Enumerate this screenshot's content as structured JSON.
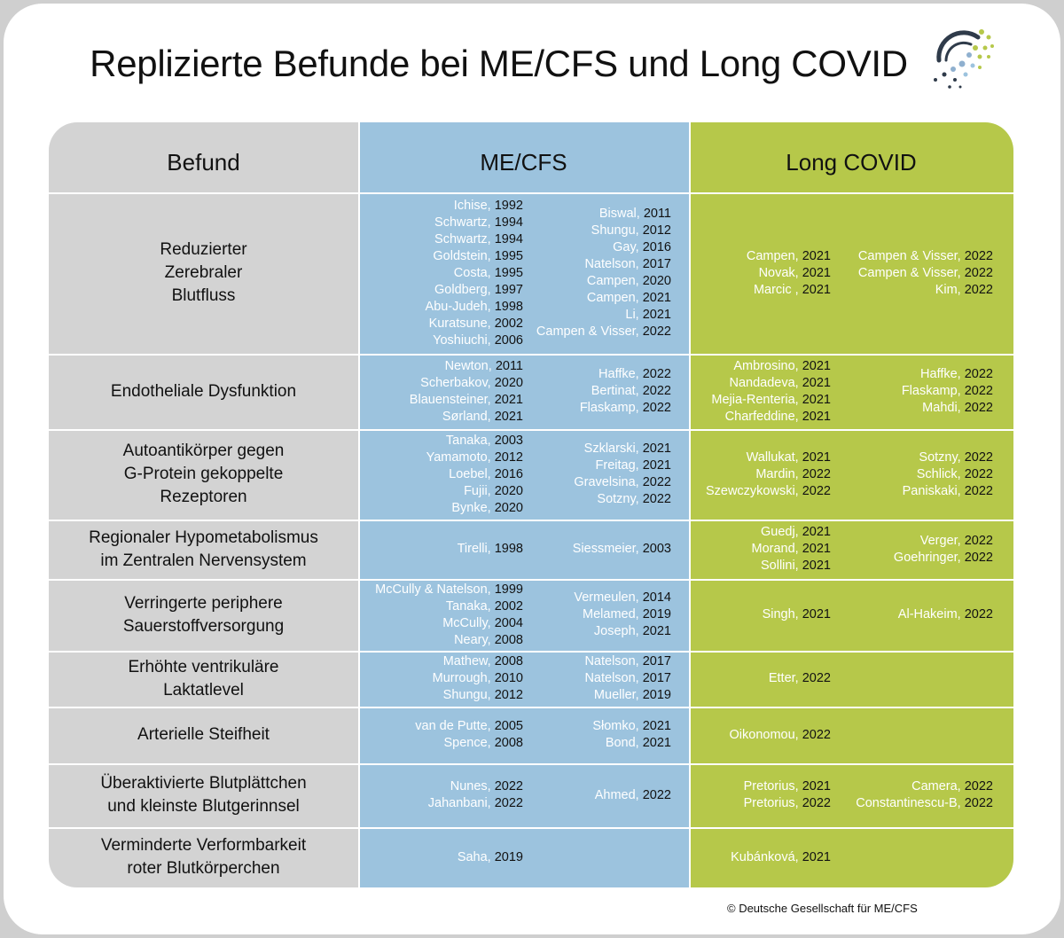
{
  "title": "Replizierte Befunde bei ME/CFS und Long COVID",
  "headers": {
    "befund": "Befund",
    "mecfs": "ME/CFS",
    "longcovid": "Long COVID"
  },
  "colors": {
    "befund": "#d3d3d3",
    "mecfs": "#9cc3de",
    "longcovid": "#b6c84a"
  },
  "logo_icon": "dots-swirl-logo",
  "rows": [
    {
      "finding": "Reduzierter\nZerebraler\nBlutfluss",
      "me_left": [
        {
          "a": "Ichise,",
          "y": "1992"
        },
        {
          "a": "Schwartz,",
          "y": "1994"
        },
        {
          "a": "Schwartz,",
          "y": "1994"
        },
        {
          "a": "Goldstein,",
          "y": "1995"
        },
        {
          "a": "Costa,",
          "y": "1995"
        },
        {
          "a": "Goldberg,",
          "y": "1997"
        },
        {
          "a": "Abu-Judeh,",
          "y": "1998"
        },
        {
          "a": "Kuratsune,",
          "y": "2002"
        },
        {
          "a": "Yoshiuchi,",
          "y": "2006"
        }
      ],
      "me_right": [
        {
          "a": "Biswal,",
          "y": "2011"
        },
        {
          "a": "Shungu,",
          "y": "2012"
        },
        {
          "a": "Gay,",
          "y": "2016"
        },
        {
          "a": "Natelson,",
          "y": "2017"
        },
        {
          "a": "Campen,",
          "y": "2020"
        },
        {
          "a": "Campen,",
          "y": "2021"
        },
        {
          "a": "Li,",
          "y": "2021"
        },
        {
          "a": "Campen & Visser,",
          "y": "2022"
        }
      ],
      "lc_left": [
        {
          "a": "Campen,",
          "y": "2021"
        },
        {
          "a": "Novak,",
          "y": "2021"
        },
        {
          "a": "Marcic ,",
          "y": "2021"
        }
      ],
      "lc_right": [
        {
          "a": "Campen & Visser,",
          "y": "2022"
        },
        {
          "a": "Campen & Visser,",
          "y": "2022"
        },
        {
          "a": "Kim,",
          "y": "2022"
        }
      ]
    },
    {
      "finding": "Endotheliale Dysfunktion",
      "me_left": [
        {
          "a": "Newton,",
          "y": "2011"
        },
        {
          "a": "Scherbakov,",
          "y": "2020"
        },
        {
          "a": "Blauensteiner,",
          "y": "2021"
        },
        {
          "a": "Sørland,",
          "y": "2021"
        }
      ],
      "me_right": [
        {
          "a": "Haffke,",
          "y": "2022"
        },
        {
          "a": "Bertinat,",
          "y": "2022"
        },
        {
          "a": "Flaskamp,",
          "y": "2022"
        }
      ],
      "lc_left": [
        {
          "a": "Ambrosino,",
          "y": "2021"
        },
        {
          "a": "Nandadeva,",
          "y": "2021"
        },
        {
          "a": "Mejia-Renteria,",
          "y": "2021"
        },
        {
          "a": "Charfeddine,",
          "y": "2021"
        }
      ],
      "lc_right": [
        {
          "a": "Haffke,",
          "y": "2022"
        },
        {
          "a": "Flaskamp,",
          "y": "2022"
        },
        {
          "a": "Mahdi,",
          "y": "2022"
        }
      ]
    },
    {
      "finding": "Autoantikörper gegen\nG-Protein gekoppelte\nRezeptoren",
      "me_left": [
        {
          "a": "Tanaka,",
          "y": "2003"
        },
        {
          "a": "Yamamoto,",
          "y": "2012"
        },
        {
          "a": "Loebel,",
          "y": "2016"
        },
        {
          "a": "Fujii,",
          "y": "2020"
        },
        {
          "a": "Bynke,",
          "y": "2020"
        }
      ],
      "me_right": [
        {
          "a": "Szklarski,",
          "y": "2021"
        },
        {
          "a": "Freitag,",
          "y": "2021"
        },
        {
          "a": "Gravelsina,",
          "y": "2022"
        },
        {
          "a": "Sotzny,",
          "y": "2022"
        }
      ],
      "lc_left": [
        {
          "a": "Wallukat,",
          "y": "2021"
        },
        {
          "a": "Mardin,",
          "y": "2022"
        },
        {
          "a": "Szewczykowski,",
          "y": "2022"
        }
      ],
      "lc_right": [
        {
          "a": "Sotzny,",
          "y": "2022"
        },
        {
          "a": "Schlick,",
          "y": "2022"
        },
        {
          "a": "Paniskaki,",
          "y": "2022"
        }
      ]
    },
    {
      "finding": "Regionaler Hypometabolismus\nim Zentralen Nervensystem",
      "me_left": [
        {
          "a": "Tirelli,",
          "y": "1998"
        }
      ],
      "me_right": [
        {
          "a": "Siessmeier,",
          "y": "2003"
        }
      ],
      "lc_left": [
        {
          "a": "Guedj,",
          "y": "2021"
        },
        {
          "a": "Morand,",
          "y": "2021"
        },
        {
          "a": "Sollini,",
          "y": "2021"
        }
      ],
      "lc_right": [
        {
          "a": "Verger,",
          "y": "2022"
        },
        {
          "a": "Goehringer,",
          "y": "2022"
        }
      ]
    },
    {
      "finding": "Verringerte periphere\nSauerstoffversorgung",
      "me_left": [
        {
          "a": "McCully & Natelson,",
          "y": "1999"
        },
        {
          "a": "Tanaka,",
          "y": "2002"
        },
        {
          "a": "McCully,",
          "y": "2004"
        },
        {
          "a": "Neary,",
          "y": "2008"
        }
      ],
      "me_right": [
        {
          "a": "Vermeulen,",
          "y": "2014"
        },
        {
          "a": "Melamed,",
          "y": "2019"
        },
        {
          "a": "Joseph,",
          "y": "2021"
        }
      ],
      "lc_left": [
        {
          "a": "Singh,",
          "y": "2021"
        }
      ],
      "lc_right": [
        {
          "a": "Al-Hakeim,",
          "y": "2022"
        }
      ]
    },
    {
      "finding": "Erhöhte ventrikuläre\nLaktatlevel",
      "me_left": [
        {
          "a": "Mathew,",
          "y": "2008"
        },
        {
          "a": "Murrough,",
          "y": "2010"
        },
        {
          "a": "Shungu,",
          "y": "2012"
        }
      ],
      "me_right": [
        {
          "a": "Natelson,",
          "y": "2017"
        },
        {
          "a": "Natelson,",
          "y": "2017"
        },
        {
          "a": "Mueller,",
          "y": "2019"
        }
      ],
      "lc_left": [
        {
          "a": "Etter,",
          "y": "2022"
        }
      ],
      "lc_right": []
    },
    {
      "finding": "Arterielle Steifheit",
      "me_left": [
        {
          "a": "van de Putte,",
          "y": "2005"
        },
        {
          "a": "Spence,",
          "y": "2008"
        }
      ],
      "me_right": [
        {
          "a": "Słomko,",
          "y": "2021"
        },
        {
          "a": "Bond,",
          "y": "2021"
        }
      ],
      "lc_left": [
        {
          "a": "Oikonomou,",
          "y": "2022"
        }
      ],
      "lc_right": []
    },
    {
      "finding": "Überaktivierte Blutplättchen\nund kleinste Blutgerinnsel",
      "me_left": [
        {
          "a": "Nunes,",
          "y": "2022"
        },
        {
          "a": "Jahanbani,",
          "y": "2022"
        }
      ],
      "me_right": [
        {
          "a": "Ahmed,",
          "y": "2022"
        }
      ],
      "lc_left": [
        {
          "a": "Pretorius,",
          "y": "2021"
        },
        {
          "a": "Pretorius,",
          "y": "2022"
        }
      ],
      "lc_right": [
        {
          "a": "Camera,",
          "y": "2022"
        },
        {
          "a": "Constantinescu-B,",
          "y": "2022"
        }
      ]
    },
    {
      "finding": "Verminderte Verformbarkeit\nroter Blutkörperchen",
      "me_left": [
        {
          "a": "Saha,",
          "y": "2019"
        }
      ],
      "me_right": [],
      "lc_left": [
        {
          "a": "Kubánková,",
          "y": "2021"
        }
      ],
      "lc_right": []
    }
  ],
  "copyright": "© Deutsche Gesellschaft für ME/CFS"
}
